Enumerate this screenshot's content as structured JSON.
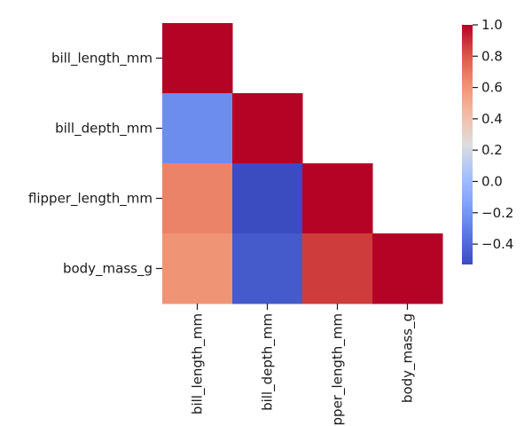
{
  "chart_data": {
    "type": "heatmap",
    "title": "",
    "xlabel": "",
    "ylabel": "",
    "mask": "upper-triangle",
    "variables": [
      "bill_length_mm",
      "bill_depth_mm",
      "flipper_length_mm",
      "body_mass_g"
    ],
    "x_categories": [
      "bill_length_mm",
      "bill_depth_mm",
      "flipper_length_mm",
      "body_mass_g"
    ],
    "y_categories": [
      "bill_length_mm",
      "bill_depth_mm",
      "flipper_length_mm",
      "body_mass_g"
    ],
    "colormap": "coolwarm",
    "color_range": [
      -0.53,
      1.0
    ],
    "colorbar_ticks": [
      1.0,
      0.8,
      0.6,
      0.4,
      0.2,
      0.0,
      -0.2,
      -0.4
    ],
    "colorbar_tick_labels": [
      "1.0",
      "0.8",
      "0.6",
      "0.4",
      "0.2",
      "0.0",
      "−0.2",
      "−0.4"
    ],
    "cells": [
      {
        "row": 0,
        "col": 0,
        "value": 1.0
      },
      {
        "row": 1,
        "col": 0,
        "value": -0.24
      },
      {
        "row": 1,
        "col": 1,
        "value": 1.0
      },
      {
        "row": 2,
        "col": 0,
        "value": 0.66
      },
      {
        "row": 2,
        "col": 1,
        "value": -0.58
      },
      {
        "row": 2,
        "col": 2,
        "value": 1.0
      },
      {
        "row": 3,
        "col": 0,
        "value": 0.6
      },
      {
        "row": 3,
        "col": 1,
        "value": -0.47
      },
      {
        "row": 3,
        "col": 2,
        "value": 0.87
      },
      {
        "row": 3,
        "col": 3,
        "value": 1.0
      }
    ]
  }
}
